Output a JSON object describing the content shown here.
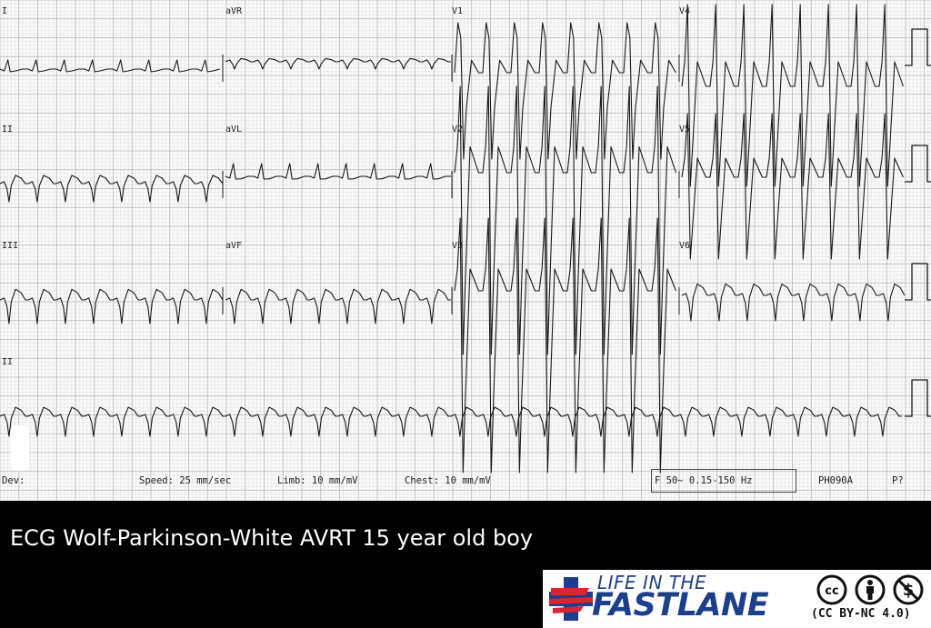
{
  "ecg": {
    "leads": {
      "I": "I",
      "aVR": "aVR",
      "V1": "V1",
      "V4": "V4",
      "II": "II",
      "aVL": "aVL",
      "V2": "V2",
      "V5": "V5",
      "III": "III",
      "aVF": "aVF",
      "V3": "V3",
      "V6": "V6",
      "rhythm": "II"
    },
    "footer": {
      "device": "Dev:",
      "speed": "Speed: 25 mm/sec",
      "limb": "Limb: 10 mm/mV",
      "chest": "Chest: 10 mm/mV",
      "filter": "F 50~ 0.15-150 Hz",
      "code": "PH090A",
      "page": "P?"
    }
  },
  "caption": "ECG Wolf-Parkinson-White AVRT 15 year old boy",
  "logo": {
    "line1": "LIFE IN THE",
    "line2": "FASTLANE",
    "license": "(CC BY-NC 4.0)"
  },
  "colors": {
    "grid_minor": "#dcdcdc",
    "grid_major": "#b4b4b4",
    "trace": "#1a1a1a",
    "brand_blue": "#1c3f8c",
    "brand_red": "#d8252e"
  }
}
